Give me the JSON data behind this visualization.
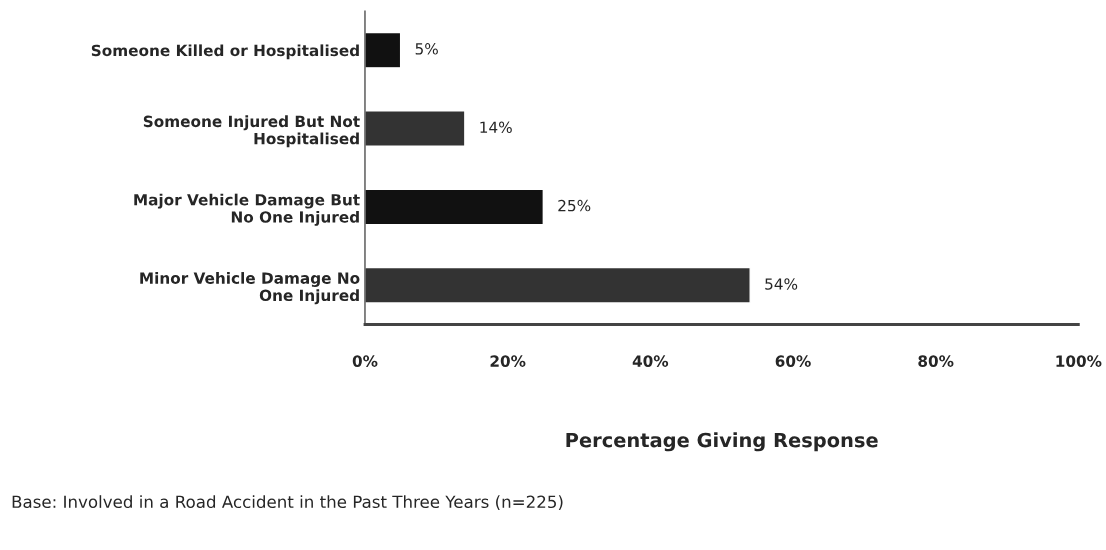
{
  "chart_data": {
    "type": "bar",
    "orientation": "horizontal",
    "categories": [
      "Someone Killed or Hospitalised",
      "Someone Injured But Not\nHospitalised",
      "Major Vehicle Damage But\nNo One Injured",
      "Minor Vehicle Damage No\nOne Injured"
    ],
    "values": [
      5,
      14,
      25,
      54
    ],
    "colors": [
      "#111111",
      "#333333",
      "#111111",
      "#333333"
    ],
    "value_labels": [
      "5%",
      "14%",
      "25%",
      "54%"
    ],
    "xlim": [
      0,
      100
    ],
    "xticks": [
      {
        "value": 0,
        "label": "0%"
      },
      {
        "value": 20,
        "label": "20%"
      },
      {
        "value": 40,
        "label": "40%"
      },
      {
        "value": 60,
        "label": "60%"
      },
      {
        "value": 80,
        "label": "80%"
      },
      {
        "value": 100,
        "label": "100%"
      }
    ],
    "xlabel": "Percentage Giving Response",
    "annotations": [
      "Base: Involved in a Road Accident in the Past Three Years (n=225)"
    ],
    "grid": false,
    "legend": false
  }
}
